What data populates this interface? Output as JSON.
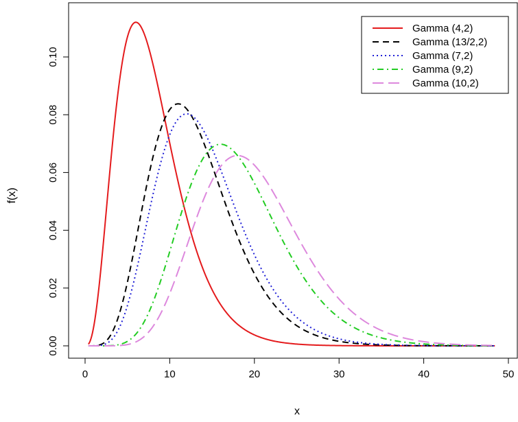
{
  "chart_data": {
    "type": "line",
    "title": "",
    "xlabel": "x",
    "ylabel": "f(x)",
    "xlim": [
      0,
      50
    ],
    "ylim": [
      0,
      0.12
    ],
    "x_ticks": [
      0,
      10,
      20,
      30,
      40,
      50
    ],
    "y_ticks": [
      0.0,
      0.02,
      0.04,
      0.06,
      0.08,
      0.1
    ],
    "y_tick_labels": [
      "0.00",
      "0.02",
      "0.04",
      "0.06",
      "0.08",
      "0.10"
    ],
    "grid": false,
    "legend_position": "top-right",
    "series": [
      {
        "name": "Gamma (4,2)",
        "shape": 4,
        "scale": 2,
        "color": "#e41a1c",
        "dash": "solid"
      },
      {
        "name": "Gamma (13/2,2)",
        "shape": 6.5,
        "scale": 2,
        "color": "#000000",
        "dash": "dashed"
      },
      {
        "name": "Gamma (7,2)",
        "shape": 7,
        "scale": 2,
        "color": "#1f1fd6",
        "dash": "dotted"
      },
      {
        "name": "Gamma (9,2)",
        "shape": 9,
        "scale": 2,
        "color": "#22cc22",
        "dash": "dotdash"
      },
      {
        "name": "Gamma (10,2)",
        "shape": 10,
        "scale": 2,
        "color": "#dd88dd",
        "dash": "longdash"
      }
    ]
  }
}
